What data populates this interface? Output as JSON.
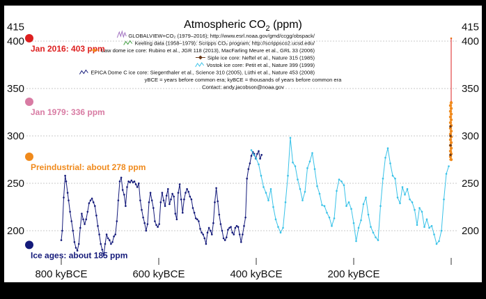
{
  "chart_data": {
    "type": "line",
    "title_main": "Atmospheric CO",
    "title_sub": "2",
    "title_tail": " (ppm)",
    "x_ticks": [
      "800 kyBCE",
      "600 kyBCE",
      "400 kyBCE",
      "200 kyBCE"
    ],
    "y_ticks_left": [
      "415",
      "400",
      "350",
      "300",
      "250",
      "200"
    ],
    "y_ticks_right": [
      "415",
      "400",
      "350",
      "300",
      "250",
      "200"
    ],
    "legend": [
      {
        "text": "GLOBALVIEW+CO₂ (1979–2016); http://www.esrl.noaa.gov/gmd/ccgg/obspack/",
        "color": "#a070c0",
        "marker": "scribble"
      },
      {
        "text": "Keeling data (1958–1979): Scripps CO₂ program; http://scrippsco2.ucsd.edu/",
        "color": "#3a9a3a",
        "marker": "squiggle"
      },
      {
        "text": "Law dome ice core:  Rubino et al., JGR 118 (2013), MacFarling Meure et al., GRL 33 (2006)",
        "color": "#f08a1c",
        "marker": "diamond"
      },
      {
        "text": "Siple ice core:  Neftel et al., Nature 315 (1985)",
        "color": "#6b3a1a",
        "marker": "diamond"
      },
      {
        "text": "Vostok ice core:  Petit et al., Nature 399 (1999)",
        "color": "#39c2e8",
        "marker": "squiggle"
      },
      {
        "text": "EPICA Dome C ice core:  Siegenthaler et al., Science 310 (2005), Lüthi et al., Nature 453 (2008)",
        "color": "#141a7a",
        "marker": "squiggle"
      }
    ],
    "notes": [
      "yBCE = years before common era; kyBCE = thousands of years before common era",
      "Contact: andy.jacobson@noaa.gov"
    ],
    "annotations": [
      {
        "label": "Jan 2016: 403 ppm",
        "value": 403,
        "color": "#dd1f1f"
      },
      {
        "label": "Jan 1979: 336 ppm",
        "value": 336,
        "color": "#d87ba3"
      },
      {
        "label": "Preindustrial: about 278 ppm",
        "value": 278,
        "color": "#f08a1c"
      },
      {
        "label": "Ice ages: about 185 ppm",
        "value": 185,
        "color": "#141a7a"
      }
    ],
    "ylim": [
      170,
      415
    ],
    "xlim_ky": [
      800,
      0
    ],
    "series": [
      {
        "name": "EPICA Dome C ice core",
        "color": "#141a7a",
        "x_ky": [
          800,
          798,
          795,
          792,
          790,
          787,
          785,
          782,
          779,
          776,
          773,
          770,
          767,
          764,
          761,
          758,
          755,
          752,
          749,
          746,
          743,
          740,
          737,
          734,
          731,
          728,
          725,
          722,
          719,
          716,
          713,
          710,
          707,
          704,
          701,
          698,
          695,
          692,
          689,
          686,
          683,
          680,
          677,
          674,
          671,
          668,
          665,
          662,
          659,
          656,
          653,
          650,
          647,
          644,
          641,
          638,
          635,
          632,
          629,
          626,
          623,
          620,
          617,
          614,
          611,
          608,
          605,
          602,
          599,
          596,
          593,
          590,
          587,
          584,
          581,
          578,
          575,
          572,
          569,
          566,
          563,
          560,
          557,
          554,
          551,
          548,
          545,
          542,
          539,
          536,
          533,
          530,
          527,
          524,
          521,
          518,
          515,
          512,
          509,
          506,
          503,
          500,
          497,
          494,
          491,
          488,
          485,
          482,
          479,
          476,
          473,
          470,
          467,
          464,
          461,
          458,
          455,
          452,
          449,
          446,
          443,
          440,
          437,
          434,
          431,
          428,
          425,
          422,
          419,
          416,
          413,
          410,
          407,
          404,
          401,
          398,
          395,
          392,
          389
        ],
        "y": [
          190,
          200,
          235,
          258,
          252,
          240,
          232,
          220,
          210,
          200,
          188,
          182,
          179,
          186,
          203,
          218,
          212,
          207,
          212,
          220,
          229,
          232,
          234,
          230,
          226,
          216,
          205,
          196,
          186,
          180,
          174,
          186,
          196,
          192,
          190,
          186,
          188,
          194,
          196,
          210,
          232,
          252,
          256,
          243,
          238,
          226,
          246,
          252,
          251,
          253,
          251,
          252,
          249,
          246,
          250,
          232,
          222,
          214,
          208,
          200,
          207,
          230,
          240,
          232,
          224,
          210,
          206,
          204,
          207,
          230,
          240,
          232,
          226,
          237,
          244,
          228,
          233,
          239,
          236,
          218,
          212,
          240,
          249,
          233,
          219,
          233,
          240,
          244,
          241,
          236,
          233,
          224,
          219,
          213,
          212,
          210,
          202,
          198,
          196,
          192,
          186,
          198,
          203,
          200,
          196,
          208,
          230,
          245,
          231,
          217,
          207,
          200,
          192,
          190,
          193,
          201,
          203,
          204,
          198,
          196,
          203,
          205,
          204,
          196,
          188,
          196,
          205,
          214,
          255,
          265,
          271,
          279,
          283,
          281,
          276,
          281,
          284,
          276,
          280
        ]
      },
      {
        "name": "Vostok ice core",
        "color": "#39c2e8",
        "x_ky": [
          410,
          405,
          400,
          395,
          390,
          385,
          380,
          375,
          370,
          365,
          360,
          355,
          350,
          345,
          340,
          335,
          330,
          325,
          320,
          315,
          310,
          305,
          300,
          295,
          290,
          285,
          280,
          275,
          270,
          265,
          260,
          255,
          250,
          245,
          240,
          235,
          230,
          225,
          220,
          215,
          210,
          205,
          200,
          195,
          190,
          185,
          180,
          175,
          170,
          165,
          160,
          155,
          150,
          145,
          140,
          135,
          130,
          125,
          120,
          115,
          110,
          105,
          100,
          95,
          90,
          85,
          80,
          75,
          70,
          65,
          60,
          55,
          50,
          45,
          40,
          35,
          30,
          25,
          20,
          15,
          10,
          5
        ],
        "y": [
          285,
          280,
          276,
          270,
          258,
          246,
          240,
          232,
          244,
          225,
          212,
          204,
          198,
          203,
          230,
          258,
          298,
          272,
          268,
          254,
          244,
          232,
          241,
          266,
          273,
          282,
          265,
          247,
          239,
          227,
          226,
          219,
          214,
          205,
          213,
          242,
          254,
          252,
          248,
          226,
          230,
          223,
          208,
          189,
          203,
          211,
          228,
          235,
          217,
          204,
          198,
          193,
          190,
          226,
          255,
          277,
          287,
          271,
          258,
          255,
          235,
          229,
          246,
          238,
          244,
          233,
          230,
          222,
          206,
          224,
          220,
          204,
          212,
          203,
          205,
          196,
          186,
          189,
          200,
          233,
          260,
          268
        ]
      },
      {
        "name": "Law dome / Siple / Keeling / GLOBALVIEW",
        "color": "#f08a1c",
        "x_ky": [
          2.0,
          1.5,
          1.0,
          0.5,
          0.3,
          0.2,
          0.15,
          0.1,
          0.06,
          0.03,
          0.0
        ],
        "y": [
          275,
          277,
          279,
          280,
          280,
          283,
          290,
          305,
          317,
          336,
          403
        ]
      }
    ]
  }
}
